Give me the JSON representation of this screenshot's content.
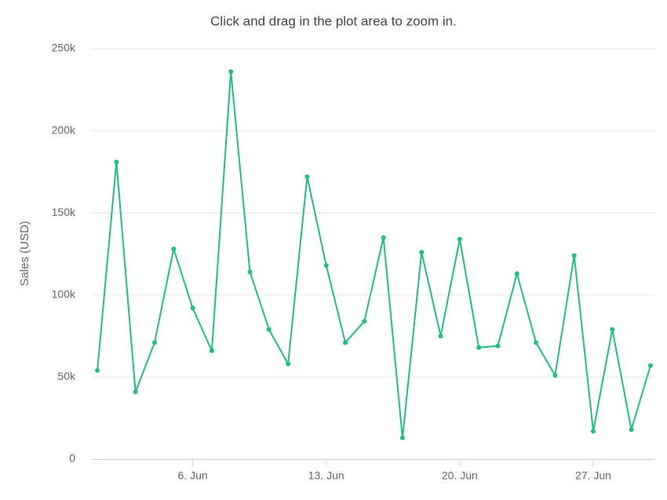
{
  "chart_data": {
    "type": "line",
    "title": "Click and drag in the plot area to zoom in.",
    "y_label": "Sales (USD)",
    "x": [
      1,
      2,
      3,
      4,
      5,
      6,
      7,
      8,
      9,
      10,
      11,
      12,
      13,
      14,
      15,
      16,
      17,
      18,
      19,
      20,
      21,
      22,
      23,
      24,
      25,
      26,
      27,
      28,
      29,
      30
    ],
    "series": [
      {
        "name": "Sales",
        "color": "#1fbf80",
        "values": [
          54000,
          181000,
          41000,
          71000,
          128000,
          92000,
          66000,
          236000,
          114000,
          79000,
          58000,
          172000,
          118000,
          71000,
          84000,
          135000,
          13000,
          126000,
          75000,
          134000,
          68000,
          69000,
          113000,
          71000,
          51000,
          124000,
          17000,
          79000,
          18000,
          57000
        ]
      }
    ],
    "xlim": [
      0.75,
      30.25
    ],
    "xticks": [
      {
        "value": 6,
        "label": "6. Jun"
      },
      {
        "value": 13,
        "label": "13. Jun"
      },
      {
        "value": 20,
        "label": "20. Jun"
      },
      {
        "value": 27,
        "label": "27. Jun"
      }
    ],
    "ylim": [
      0,
      250000
    ],
    "yticks": [
      0,
      {
        "value": 50000,
        "label": "50k"
      },
      {
        "value": 100000,
        "label": "100k"
      },
      {
        "value": 150000,
        "label": "150k"
      },
      {
        "value": 200000,
        "label": "200k"
      },
      {
        "value": 250000,
        "label": "250k"
      }
    ],
    "grid": true
  }
}
